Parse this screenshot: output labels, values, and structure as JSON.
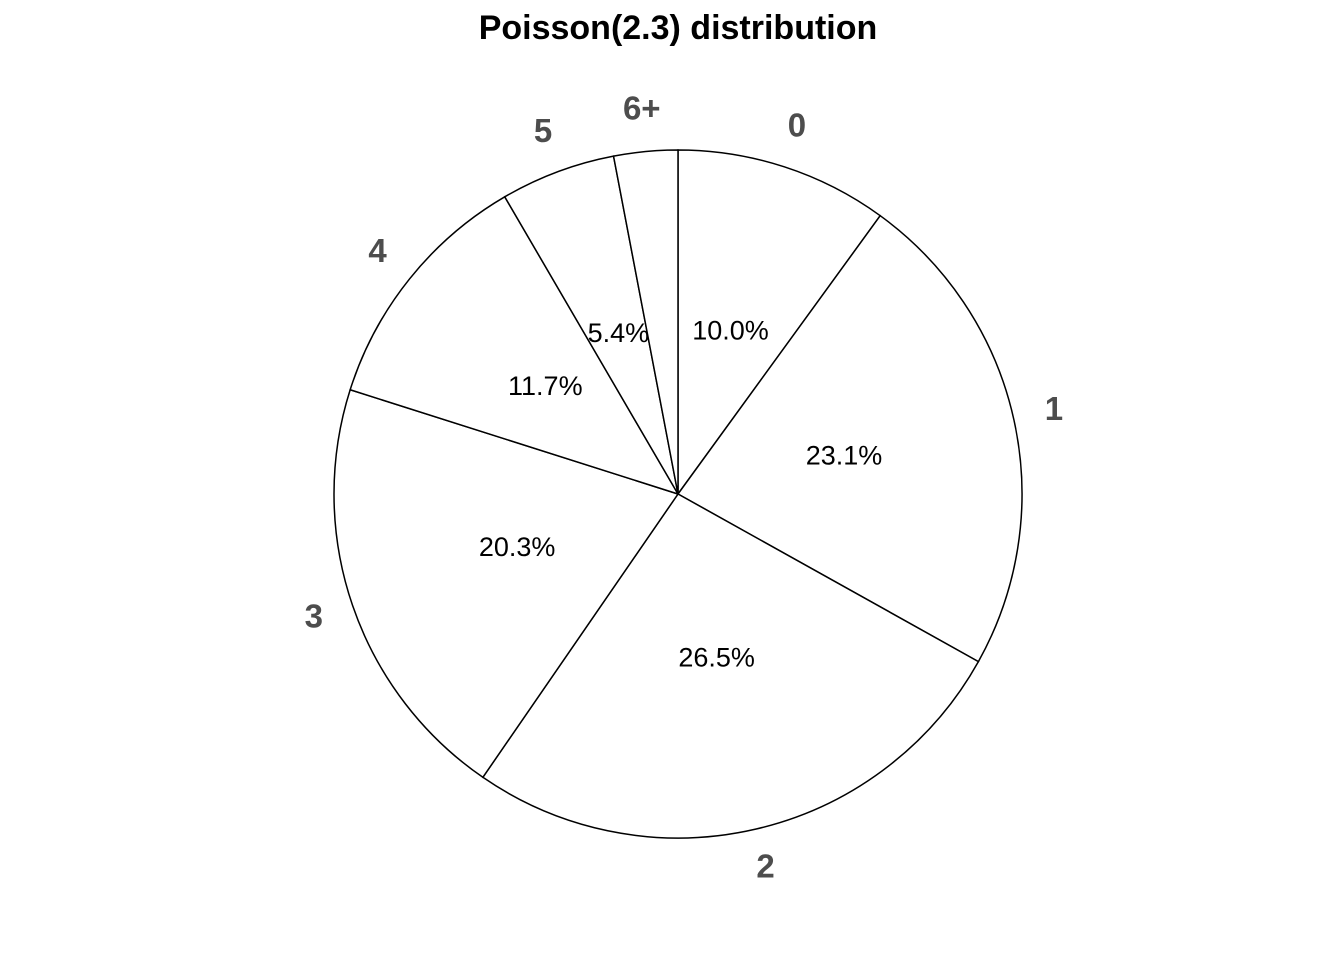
{
  "chart_data": {
    "type": "pie",
    "title": "Poisson(2.3) distribution",
    "categories": [
      "0",
      "1",
      "2",
      "3",
      "4",
      "5",
      "6+"
    ],
    "values": [
      10.0,
      23.1,
      26.5,
      20.3,
      11.7,
      5.4,
      3.0
    ],
    "value_labels": [
      "10.0%",
      "23.1%",
      "26.5%",
      "20.3%",
      "11.7%",
      "5.4%",
      null
    ],
    "color": "#ffffff"
  }
}
